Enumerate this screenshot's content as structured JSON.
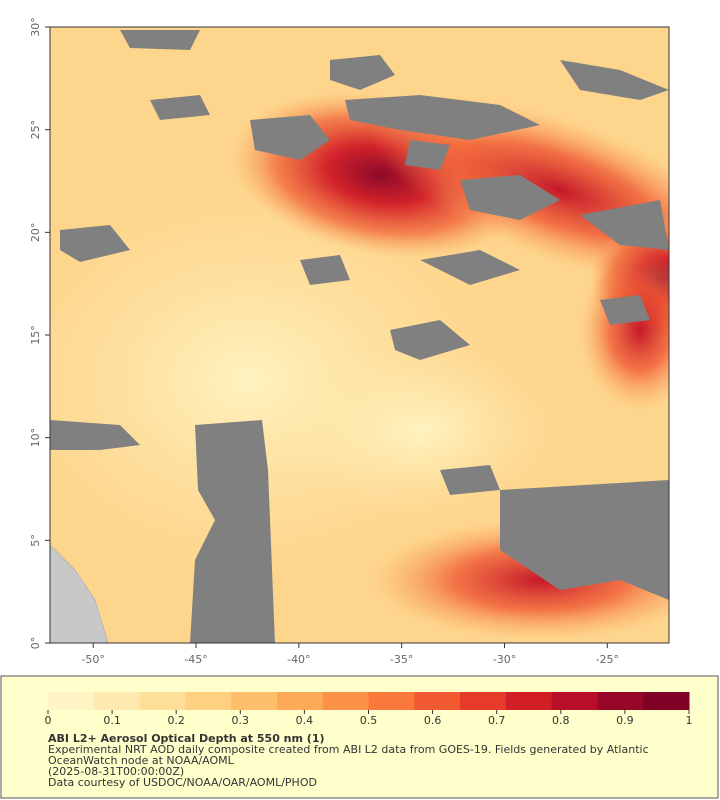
{
  "map": {
    "xlim": [
      -52.1,
      -22
    ],
    "ylim": [
      0,
      30
    ],
    "xticks": [
      {
        "value": -50,
        "label": "-50°"
      },
      {
        "value": -45,
        "label": "-45°"
      },
      {
        "value": -40,
        "label": "-40°"
      },
      {
        "value": -35,
        "label": "-35°"
      },
      {
        "value": -30,
        "label": "-30°"
      },
      {
        "value": -25,
        "label": "-25°"
      }
    ],
    "yticks": [
      {
        "value": 0,
        "label": "0°"
      },
      {
        "value": 5,
        "label": "5°"
      },
      {
        "value": 10,
        "label": "10°"
      },
      {
        "value": 15,
        "label": "15°"
      },
      {
        "value": 20,
        "label": "20°"
      },
      {
        "value": 25,
        "label": "25°"
      },
      {
        "value": 30,
        "label": "30°"
      }
    ]
  },
  "legend": {
    "lim": [
      0,
      1
    ],
    "ticks": [
      0,
      0.1,
      0.2,
      0.3,
      0.4,
      0.5,
      0.6,
      0.7,
      0.8,
      0.9,
      1
    ],
    "colors": [
      "#fff4c4",
      "#feeab0",
      "#fedf98",
      "#fed080",
      "#fdbf6c",
      "#fdaa58",
      "#fc9248",
      "#fa783c",
      "#f45a32",
      "#e63a2a",
      "#d21f26",
      "#b80e28",
      "#980628",
      "#800026"
    ],
    "title": "ABI L2+ Aerosol Optical Depth at 550 nm (1)",
    "notes": [
      "Experimental NRT AOD daily composite created from ABI L2 data from GOES-19. Fields generated by Atlantic",
      "OceanWatch node at NOAA/AOML",
      "(2025-08-31T00:00:00Z)",
      "Data courtesy of USDOC/NOAA/OAR/AOML/PHOD"
    ]
  }
}
